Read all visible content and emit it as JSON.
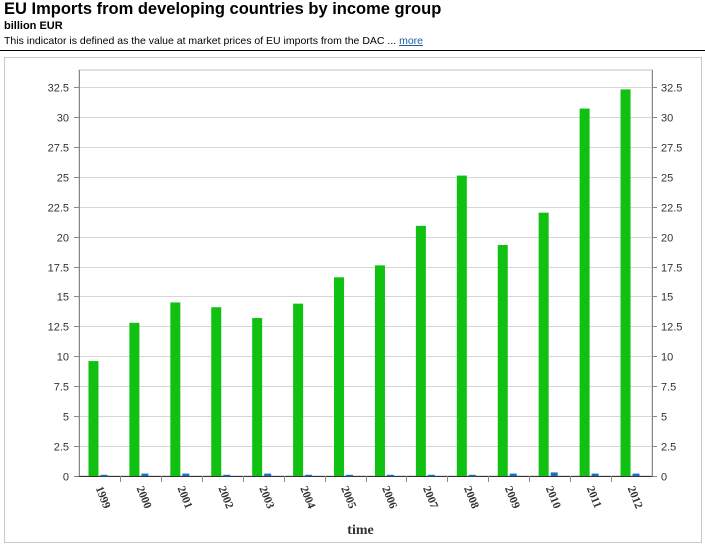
{
  "header": {
    "title": "EU Imports from developing countries by income group",
    "unit": "billion EUR",
    "description": "This indicator is defined as the value at market prices of EU imports from the DAC ...",
    "more_link": "more"
  },
  "chart_data": {
    "type": "bar",
    "title": "",
    "xlabel": "time",
    "ylabel": "",
    "ylim": [
      0,
      32.5
    ],
    "yticks": [
      0,
      2.5,
      5,
      7.5,
      10,
      12.5,
      15,
      17.5,
      20,
      22.5,
      25,
      27.5,
      30,
      32.5
    ],
    "grid": true,
    "legend": "none",
    "categories": [
      "1999",
      "2000",
      "2001",
      "2002",
      "2003",
      "2004",
      "2005",
      "2006",
      "2007",
      "2008",
      "2009",
      "2010",
      "2011",
      "2012"
    ],
    "series": [
      {
        "color": "#11c111",
        "values": [
          9.6,
          12.8,
          14.5,
          14.1,
          13.2,
          14.4,
          16.6,
          17.6,
          20.9,
          25.1,
          19.3,
          22.0,
          30.7,
          32.3
        ]
      },
      {
        "color": "#1a6fc2",
        "values": [
          0.1,
          0.2,
          0.2,
          0.1,
          0.2,
          0.1,
          0.1,
          0.1,
          0.1,
          0.1,
          0.2,
          0.3,
          0.2,
          0.2
        ]
      }
    ]
  }
}
